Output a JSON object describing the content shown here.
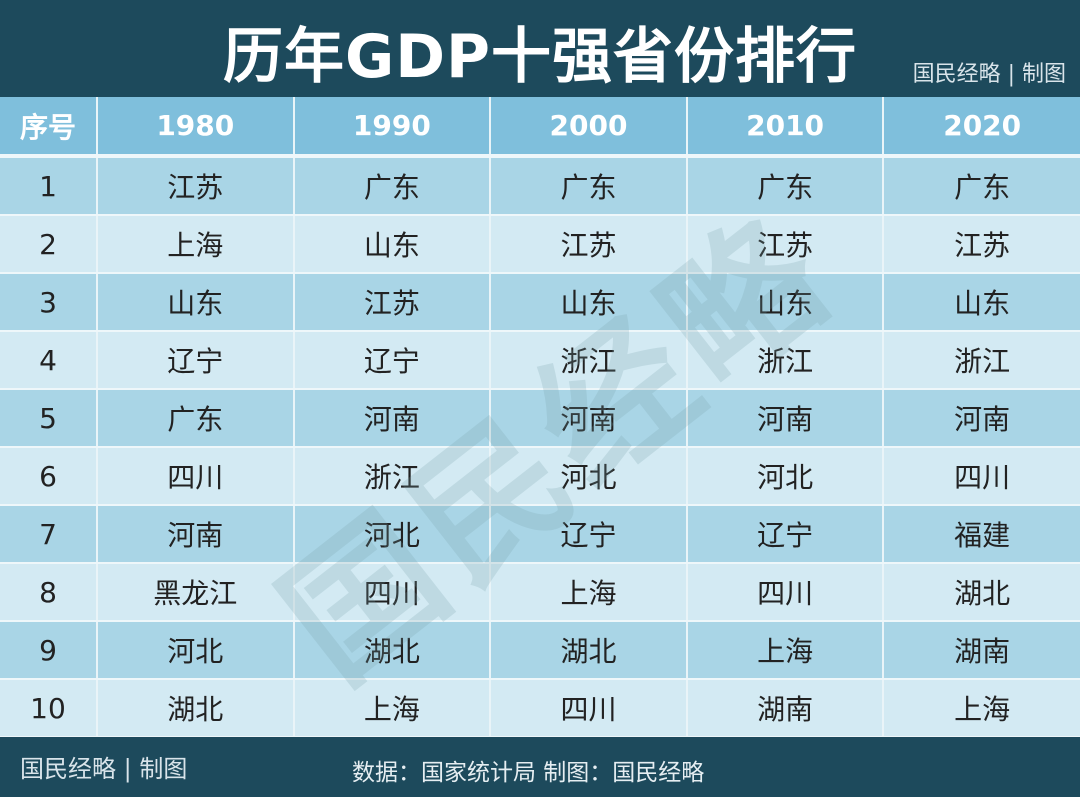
{
  "title": "历年GDP十强省份排行",
  "brand": "国民经略 | 制图",
  "watermark": "国民经略",
  "table": {
    "headers": [
      "序号",
      "1980",
      "1990",
      "2000",
      "2010",
      "2020"
    ],
    "rows": [
      [
        "1",
        "江苏",
        "广东",
        "广东",
        "广东",
        "广东"
      ],
      [
        "2",
        "上海",
        "山东",
        "江苏",
        "江苏",
        "江苏"
      ],
      [
        "3",
        "山东",
        "江苏",
        "山东",
        "山东",
        "山东"
      ],
      [
        "4",
        "辽宁",
        "辽宁",
        "浙江",
        "浙江",
        "浙江"
      ],
      [
        "5",
        "广东",
        "河南",
        "河南",
        "河南",
        "河南"
      ],
      [
        "6",
        "四川",
        "浙江",
        "河北",
        "河北",
        "四川"
      ],
      [
        "7",
        "河南",
        "河北",
        "辽宁",
        "辽宁",
        "福建"
      ],
      [
        "8",
        "黑龙江",
        "四川",
        "上海",
        "四川",
        "湖北"
      ],
      [
        "9",
        "河北",
        "湖北",
        "湖北",
        "上海",
        "湖南"
      ],
      [
        "10",
        "湖北",
        "上海",
        "四川",
        "湖南",
        "上海"
      ]
    ]
  },
  "footer": {
    "brand": "国民经略 | 制图",
    "source": "数据：国家统计局 制图：国民经略"
  },
  "colors": {
    "dark": "#1d4a5c",
    "header": "#7fbfdc",
    "row_odd": "#a9d5e6",
    "row_even": "#d3eaf3"
  }
}
